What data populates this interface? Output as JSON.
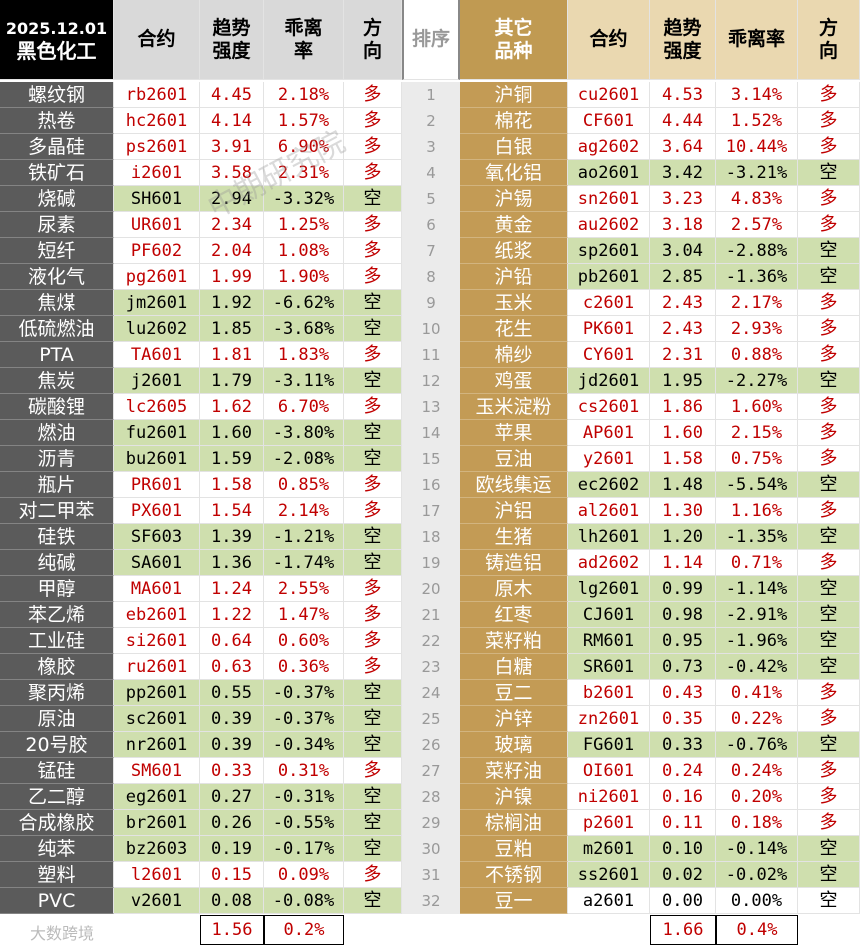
{
  "header": {
    "date": "2025.12.01",
    "left_group": "黑色化工",
    "columns": [
      "合约",
      "趋势强度",
      "乖离率",
      "方向"
    ],
    "rank": "排序",
    "right_group": "其它品种"
  },
  "left_rows": [
    [
      "螺纹钢",
      "rb2601",
      "4.45",
      "2.18%",
      "多"
    ],
    [
      "热卷",
      "hc2601",
      "4.14",
      "1.57%",
      "多"
    ],
    [
      "多晶硅",
      "ps2601",
      "3.91",
      "6.90%",
      "多"
    ],
    [
      "铁矿石",
      "i2601",
      "3.58",
      "2.31%",
      "多"
    ],
    [
      "烧碱",
      "SH601",
      "2.94",
      "-3.32%",
      "空"
    ],
    [
      "尿素",
      "UR601",
      "2.34",
      "1.25%",
      "多"
    ],
    [
      "短纤",
      "PF602",
      "2.04",
      "1.08%",
      "多"
    ],
    [
      "液化气",
      "pg2601",
      "1.99",
      "1.90%",
      "多"
    ],
    [
      "焦煤",
      "jm2601",
      "1.92",
      "-6.62%",
      "空"
    ],
    [
      "低硫燃油",
      "lu2602",
      "1.85",
      "-3.68%",
      "空"
    ],
    [
      "PTA",
      "TA601",
      "1.81",
      "1.83%",
      "多"
    ],
    [
      "焦炭",
      "j2601",
      "1.79",
      "-3.11%",
      "空"
    ],
    [
      "碳酸锂",
      "lc2605",
      "1.62",
      "6.70%",
      "多"
    ],
    [
      "燃油",
      "fu2601",
      "1.60",
      "-3.80%",
      "空"
    ],
    [
      "沥青",
      "bu2601",
      "1.59",
      "-2.08%",
      "空"
    ],
    [
      "瓶片",
      "PR601",
      "1.58",
      "0.85%",
      "多"
    ],
    [
      "对二甲苯",
      "PX601",
      "1.54",
      "2.14%",
      "多"
    ],
    [
      "硅铁",
      "SF603",
      "1.39",
      "-1.21%",
      "空"
    ],
    [
      "纯碱",
      "SA601",
      "1.36",
      "-1.74%",
      "空"
    ],
    [
      "甲醇",
      "MA601",
      "1.24",
      "2.55%",
      "多"
    ],
    [
      "苯乙烯",
      "eb2601",
      "1.22",
      "1.47%",
      "多"
    ],
    [
      "工业硅",
      "si2601",
      "0.64",
      "0.60%",
      "多"
    ],
    [
      "橡胶",
      "ru2601",
      "0.63",
      "0.36%",
      "多"
    ],
    [
      "聚丙烯",
      "pp2601",
      "0.55",
      "-0.37%",
      "空"
    ],
    [
      "原油",
      "sc2601",
      "0.39",
      "-0.37%",
      "空"
    ],
    [
      "20号胶",
      "nr2601",
      "0.39",
      "-0.34%",
      "空"
    ],
    [
      "锰硅",
      "SM601",
      "0.33",
      "0.31%",
      "多"
    ],
    [
      "乙二醇",
      "eg2601",
      "0.27",
      "-0.31%",
      "空"
    ],
    [
      "合成橡胶",
      "br2601",
      "0.26",
      "-0.55%",
      "空"
    ],
    [
      "纯苯",
      "bz2603",
      "0.19",
      "-0.17%",
      "空"
    ],
    [
      "塑料",
      "l2601",
      "0.15",
      "0.09%",
      "多"
    ],
    [
      "PVC",
      "v2601",
      "0.08",
      "-0.08%",
      "空"
    ]
  ],
  "right_rows": [
    [
      "沪铜",
      "cu2601",
      "4.53",
      "3.14%",
      "多"
    ],
    [
      "棉花",
      "CF601",
      "4.44",
      "1.52%",
      "多"
    ],
    [
      "白银",
      "ag2602",
      "3.64",
      "10.44%",
      "多"
    ],
    [
      "氧化铝",
      "ao2601",
      "3.42",
      "-3.21%",
      "空"
    ],
    [
      "沪锡",
      "sn2601",
      "3.23",
      "4.83%",
      "多"
    ],
    [
      "黄金",
      "au2602",
      "3.18",
      "2.57%",
      "多"
    ],
    [
      "纸浆",
      "sp2601",
      "3.04",
      "-2.88%",
      "空"
    ],
    [
      "沪铅",
      "pb2601",
      "2.85",
      "-1.36%",
      "空"
    ],
    [
      "玉米",
      "c2601",
      "2.43",
      "2.17%",
      "多"
    ],
    [
      "花生",
      "PK601",
      "2.43",
      "2.93%",
      "多"
    ],
    [
      "棉纱",
      "CY601",
      "2.31",
      "0.88%",
      "多"
    ],
    [
      "鸡蛋",
      "jd2601",
      "1.95",
      "-2.27%",
      "空"
    ],
    [
      "玉米淀粉",
      "cs2601",
      "1.86",
      "1.60%",
      "多"
    ],
    [
      "苹果",
      "AP601",
      "1.60",
      "2.15%",
      "多"
    ],
    [
      "豆油",
      "y2601",
      "1.58",
      "0.75%",
      "多"
    ],
    [
      "欧线集运",
      "ec2602",
      "1.48",
      "-5.54%",
      "空"
    ],
    [
      "沪铝",
      "al2601",
      "1.30",
      "1.16%",
      "多"
    ],
    [
      "生猪",
      "lh2601",
      "1.20",
      "-1.35%",
      "空"
    ],
    [
      "铸造铝",
      "ad2602",
      "1.14",
      "0.71%",
      "多"
    ],
    [
      "原木",
      "lg2601",
      "0.99",
      "-1.14%",
      "空"
    ],
    [
      "红枣",
      "CJ601",
      "0.98",
      "-2.91%",
      "空"
    ],
    [
      "菜籽粕",
      "RM601",
      "0.95",
      "-1.96%",
      "空"
    ],
    [
      "白糖",
      "SR601",
      "0.73",
      "-0.42%",
      "空"
    ],
    [
      "豆二",
      "b2601",
      "0.43",
      "0.41%",
      "多"
    ],
    [
      "沪锌",
      "zn2601",
      "0.35",
      "0.22%",
      "多"
    ],
    [
      "玻璃",
      "FG601",
      "0.33",
      "-0.76%",
      "空"
    ],
    [
      "菜籽油",
      "OI601",
      "0.24",
      "0.24%",
      "多"
    ],
    [
      "沪镍",
      "ni2601",
      "0.16",
      "0.20%",
      "多"
    ],
    [
      "棕榈油",
      "p2601",
      "0.11",
      "0.18%",
      "多"
    ],
    [
      "豆粕",
      "m2601",
      "0.10",
      "-0.14%",
      "空"
    ],
    [
      "不锈钢",
      "ss2601",
      "0.02",
      "-0.02%",
      "空"
    ],
    [
      "豆一",
      "a2601",
      "0.00",
      "0.00%",
      "空"
    ]
  ],
  "ranks": [
    "1",
    "2",
    "3",
    "4",
    "5",
    "6",
    "7",
    "8",
    "9",
    "10",
    "11",
    "12",
    "13",
    "14",
    "15",
    "16",
    "17",
    "18",
    "19",
    "20",
    "21",
    "22",
    "23",
    "24",
    "25",
    "26",
    "27",
    "28",
    "29",
    "30",
    "31",
    "32"
  ],
  "summary": {
    "left": [
      "1.56",
      "0.2%"
    ],
    "right": [
      "1.66",
      "0.4%"
    ]
  },
  "watermarks": [
    "中期研究院",
    "大数跨境"
  ]
}
